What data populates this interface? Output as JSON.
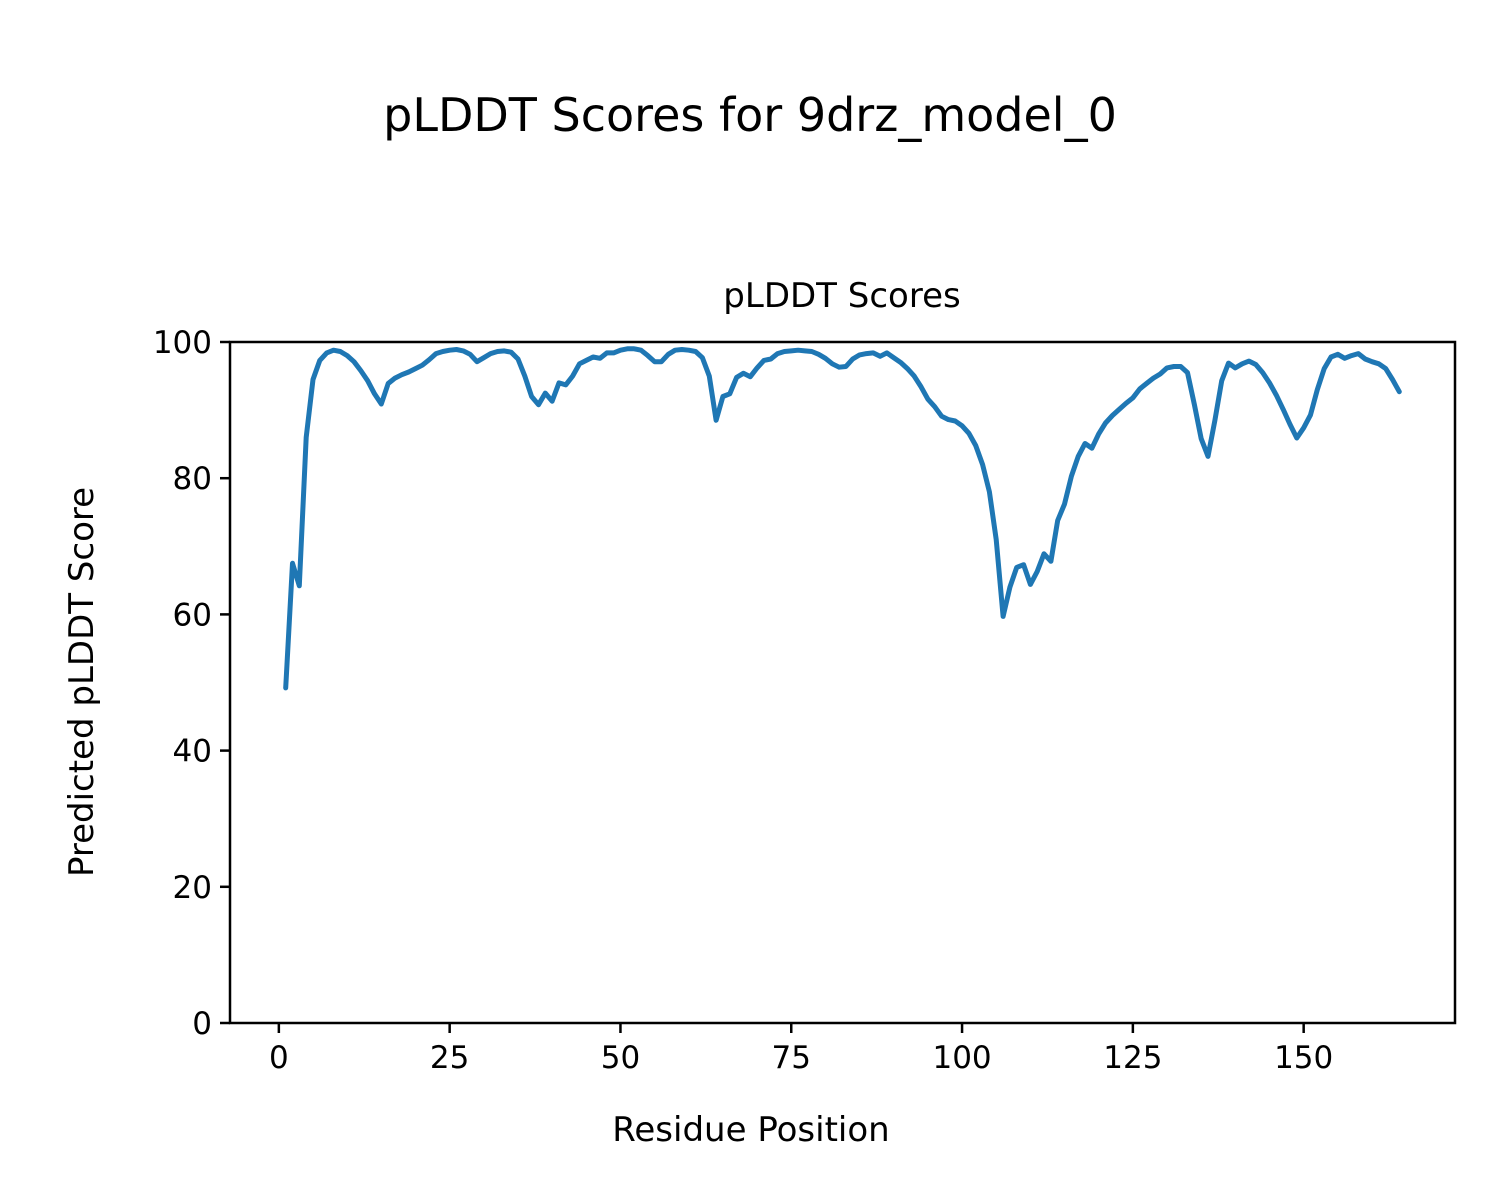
{
  "figure": {
    "suptitle": "pLDDT Scores for 9drz_model_0"
  },
  "chart_data": {
    "type": "line",
    "title": "pLDDT Scores",
    "xlabel": "Residue Position",
    "ylabel": "Predicted pLDDT Score",
    "x_ticks": [
      0,
      25,
      50,
      75,
      100,
      125,
      150
    ],
    "y_ticks": [
      0,
      20,
      40,
      60,
      80,
      100
    ],
    "xlim": [
      -7.15,
      172.15
    ],
    "ylim": [
      0,
      100
    ],
    "grid": false,
    "legend": "none",
    "line_color": "#1f77b4",
    "axis_color": "#000000",
    "series": [
      {
        "name": "pLDDT",
        "x": [
          1,
          2,
          3,
          4,
          5,
          6,
          7,
          8,
          9,
          10,
          11,
          12,
          13,
          14,
          15,
          16,
          17,
          18,
          19,
          20,
          21,
          22,
          23,
          24,
          25,
          26,
          27,
          28,
          29,
          30,
          31,
          32,
          33,
          34,
          35,
          36,
          37,
          38,
          39,
          40,
          41,
          42,
          43,
          44,
          45,
          46,
          47,
          48,
          49,
          50,
          51,
          52,
          53,
          54,
          55,
          56,
          57,
          58,
          59,
          60,
          61,
          62,
          63,
          64,
          65,
          66,
          67,
          68,
          69,
          70,
          71,
          72,
          73,
          74,
          75,
          76,
          77,
          78,
          79,
          80,
          81,
          82,
          83,
          84,
          85,
          86,
          87,
          88,
          89,
          90,
          91,
          92,
          93,
          94,
          95,
          96,
          97,
          98,
          99,
          100,
          101,
          102,
          103,
          104,
          105,
          106,
          107,
          108,
          109,
          110,
          111,
          112,
          113,
          114,
          115,
          116,
          117,
          118,
          119,
          120,
          121,
          122,
          123,
          124,
          125,
          126,
          127,
          128,
          129,
          130,
          131,
          132,
          133,
          134,
          135,
          136,
          137,
          138,
          139,
          140,
          141,
          142,
          143,
          144,
          145,
          146,
          147,
          148,
          149,
          150,
          151,
          152,
          153,
          154,
          155,
          156,
          157,
          158,
          159,
          160,
          161,
          162,
          163,
          164
        ],
        "values": [
          49.2,
          67.5,
          64.2,
          86.0,
          94.5,
          97.3,
          98.4,
          98.8,
          98.6,
          98.0,
          97.1,
          95.8,
          94.3,
          92.4,
          90.9,
          93.9,
          94.7,
          95.2,
          95.6,
          96.1,
          96.6,
          97.4,
          98.3,
          98.6,
          98.8,
          98.9,
          98.7,
          98.2,
          97.1,
          97.7,
          98.3,
          98.6,
          98.7,
          98.5,
          97.5,
          95.0,
          92.0,
          90.8,
          92.5,
          91.3,
          94.0,
          93.7,
          95.0,
          96.8,
          97.3,
          97.8,
          97.6,
          98.4,
          98.4,
          98.8,
          99.0,
          99.0,
          98.8,
          98.0,
          97.1,
          97.1,
          98.2,
          98.8,
          98.9,
          98.8,
          98.6,
          97.7,
          95.0,
          88.5,
          92.0,
          92.4,
          94.8,
          95.4,
          94.9,
          96.2,
          97.3,
          97.5,
          98.3,
          98.6,
          98.7,
          98.8,
          98.7,
          98.6,
          98.2,
          97.6,
          96.8,
          96.3,
          96.4,
          97.5,
          98.1,
          98.3,
          98.4,
          97.9,
          98.4,
          97.7,
          97.0,
          96.1,
          95.0,
          93.4,
          91.6,
          90.5,
          89.1,
          88.6,
          88.4,
          87.7,
          86.6,
          84.8,
          82.0,
          78.0,
          71.0,
          59.7,
          64.0,
          66.9,
          67.3,
          64.4,
          66.3,
          68.9,
          67.8,
          73.8,
          76.2,
          80.3,
          83.2,
          85.1,
          84.4,
          86.5,
          88.1,
          89.2,
          90.1,
          91.0,
          91.8,
          93.1,
          93.9,
          94.7,
          95.3,
          96.2,
          96.4,
          96.4,
          95.5,
          90.8,
          85.8,
          83.2,
          88.5,
          94.3,
          96.9,
          96.2,
          96.8,
          97.2,
          96.7,
          95.5,
          94.0,
          92.2,
          90.1,
          87.9,
          85.9,
          87.4,
          89.3,
          93.0,
          96.1,
          97.8,
          98.2,
          97.6,
          98.0,
          98.3,
          97.5,
          97.1,
          96.8,
          96.1,
          94.5,
          92.7
        ]
      }
    ]
  }
}
